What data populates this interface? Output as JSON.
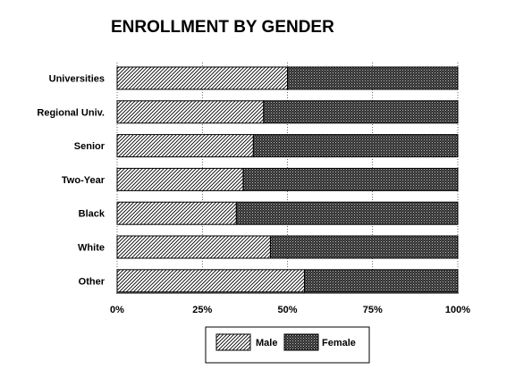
{
  "chart_data": {
    "type": "bar",
    "orientation": "horizontal",
    "stacked": true,
    "title": "ENROLLMENT BY GENDER",
    "categories": [
      "Universities",
      "Regional Univ.",
      "Senior",
      "Two-Year",
      "Black",
      "White",
      "Other"
    ],
    "series": [
      {
        "name": "Male",
        "values": [
          50,
          43,
          40,
          37,
          35,
          45,
          55
        ],
        "pattern": "diagonal-hatch"
      },
      {
        "name": "Female",
        "values": [
          50,
          57,
          60,
          63,
          65,
          55,
          45
        ],
        "pattern": "dense-dots"
      }
    ],
    "x_ticks": [
      "0%",
      "25%",
      "50%",
      "75%",
      "100%"
    ],
    "xlim": [
      0,
      100
    ],
    "grid": false,
    "legend_position": "bottom"
  }
}
